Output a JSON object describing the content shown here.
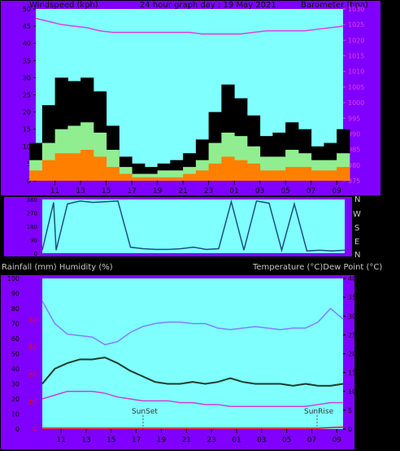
{
  "header": {
    "left_label": "Windspeed (kph)",
    "center_label": "24 hour graph day : 19 May 2021",
    "right_label": "Barometer (hpa)"
  },
  "mid_header": {
    "left_label": "Rainfall (mm)  Humidity (%)",
    "right_label": "Temperature (°C)Dew Point (°C)"
  },
  "compass": [
    "N",
    "W",
    "S",
    "E",
    "N"
  ],
  "colors": {
    "plot_bg": "#80ffff",
    "frame": "#8000ff",
    "gust": "#000000",
    "wind_avg": "#90ee90",
    "wind_low": "#ff8000",
    "barometer": "#e040e0",
    "direction": "#1a5080",
    "humidity": "#8080ff",
    "temperature": "#1a3a2a",
    "dewpoint": "#d040d0",
    "rain": "#ff0000",
    "left_axis_text": "#ff00ff"
  },
  "chart_data": [
    {
      "type": "area",
      "title": "24 hour graph day : 19 May 2021",
      "x_ticks": [
        "11",
        "13",
        "15",
        "17",
        "19",
        "21",
        "23",
        "01",
        "03",
        "05",
        "07",
        "09"
      ],
      "ylabel_left": "Windspeed (kph)",
      "ylabel_right": "Barometer (hpa)",
      "ylim_left": [
        0,
        50
      ],
      "ylim_right": [
        975,
        1030
      ],
      "yticks_left": [
        "0",
        "5",
        "10",
        "15",
        "20",
        "25",
        "30",
        "35",
        "40",
        "45",
        "50"
      ],
      "yticks_right": [
        "975",
        "980",
        "985",
        "990",
        "995",
        "1000",
        "1005",
        "1010",
        "1015",
        "1020",
        "1025",
        "1030"
      ],
      "x": [
        9.5,
        10.5,
        11.5,
        12.5,
        13.5,
        14.5,
        15.5,
        16.5,
        17.5,
        18.5,
        19.5,
        20.5,
        21.5,
        22.5,
        23.5,
        24.5,
        25.5,
        26.5,
        27.5,
        28.5,
        29.5,
        30.5,
        31.5,
        32.5,
        33.5
      ],
      "series": [
        {
          "name": "Gust",
          "values": [
            11,
            22,
            30,
            29,
            30,
            26,
            16,
            7,
            5,
            4,
            5,
            6,
            8,
            12,
            20,
            28,
            24,
            19,
            13,
            14,
            17,
            15,
            10,
            11,
            15
          ]
        },
        {
          "name": "Wind Speed",
          "values": [
            6,
            11,
            15,
            16,
            17,
            14,
            9,
            4,
            2,
            2,
            3,
            3,
            4,
            6,
            11,
            14,
            13,
            10,
            7,
            7,
            9,
            8,
            6,
            6,
            8
          ]
        },
        {
          "name": "Wind Low",
          "values": [
            3,
            6,
            8,
            8,
            9,
            7,
            4,
            2,
            1,
            1,
            1,
            1,
            2,
            3,
            5,
            7,
            6,
            5,
            3,
            3,
            4,
            4,
            3,
            3,
            4
          ]
        },
        {
          "name": "Barometer",
          "values": [
            1027,
            1026,
            1025,
            1024.5,
            1024,
            1023,
            1022.5,
            1022.5,
            1022.5,
            1022.5,
            1022.5,
            1022.5,
            1022.5,
            1022,
            1022,
            1022,
            1022,
            1022.5,
            1023,
            1023,
            1023,
            1023,
            1023.5,
            1024,
            1024.5
          ]
        }
      ]
    },
    {
      "type": "line",
      "x_ticks": [],
      "ylim": [
        0,
        360
      ],
      "yticks": [
        "0",
        "90",
        "180",
        "270",
        "360"
      ],
      "x": [
        9.5,
        10.4,
        10.6,
        11.5,
        12.5,
        13.5,
        14.5,
        15.5,
        16.5,
        17.5,
        18.5,
        19.5,
        20.5,
        21.5,
        22.5,
        23.5,
        24.5,
        25.5,
        26.5,
        27.5,
        28.5,
        29.5,
        30.5,
        31.5,
        32.5,
        33.5
      ],
      "series": [
        {
          "name": "Wind Direction",
          "values": [
            20,
            340,
            20,
            330,
            350,
            340,
            345,
            350,
            40,
            30,
            25,
            25,
            30,
            40,
            25,
            30,
            345,
            20,
            350,
            335,
            20,
            330,
            15,
            20,
            15,
            20
          ]
        }
      ]
    },
    {
      "type": "line",
      "x_ticks": [
        "11",
        "13",
        "15",
        "17",
        "19",
        "21",
        "23",
        "01",
        "03",
        "05",
        "07",
        "09"
      ],
      "ylabel_left": "Rainfall (mm)  Humidity (%)",
      "ylabel_right": "Temperature (°C)Dew Point (°C)",
      "ylim_left": [
        0,
        100
      ],
      "ylim_right": [
        0,
        40
      ],
      "yticks_left_humidity": [
        "0",
        "10",
        "20",
        "30",
        "40",
        "50",
        "60",
        "70",
        "80",
        "90",
        "100"
      ],
      "yticks_left_rain": [
        "0",
        "10",
        "20",
        "30",
        "40"
      ],
      "yticks_right": [
        "0",
        "5",
        "10",
        "15",
        "20",
        "25",
        "30",
        "35",
        "40"
      ],
      "annotations": [
        "SunSet",
        "SunRise"
      ],
      "x": [
        9.5,
        10.5,
        11.5,
        12.5,
        13.5,
        14.5,
        15.5,
        16.5,
        17.5,
        18.5,
        19.5,
        20.5,
        21.5,
        22.5,
        23.5,
        24.5,
        25.5,
        26.5,
        27.5,
        28.5,
        29.5,
        30.5,
        31.5,
        32.5,
        33.5
      ],
      "series": [
        {
          "name": "Humidity",
          "values": [
            85,
            70,
            63,
            62,
            61,
            56,
            58,
            64,
            68,
            70,
            71,
            71,
            70,
            70,
            67,
            66,
            67,
            68,
            67,
            66,
            67,
            67,
            71,
            80,
            73
          ]
        },
        {
          "name": "Temperature",
          "values": [
            12,
            16,
            17.5,
            18.5,
            18.5,
            19,
            17.5,
            15.5,
            14,
            12.5,
            12,
            12,
            12.5,
            12,
            12.5,
            13.5,
            12.5,
            12,
            12,
            12,
            11.5,
            12,
            11.5,
            11.5,
            12
          ]
        },
        {
          "name": "Dew Point",
          "values": [
            8,
            9,
            10,
            10,
            10,
            9.5,
            8.5,
            8,
            7.5,
            7.5,
            7.5,
            7,
            7,
            6.5,
            6.5,
            6,
            6,
            6,
            6,
            6,
            6,
            6,
            6.5,
            7,
            7
          ]
        },
        {
          "name": "Rainfall",
          "values": [
            0,
            0,
            0,
            0,
            0,
            0,
            0,
            0,
            0,
            0,
            0,
            0,
            0,
            0,
            0,
            0,
            0,
            0,
            0,
            0,
            0,
            0,
            0,
            0.2,
            0.3
          ]
        }
      ]
    }
  ]
}
